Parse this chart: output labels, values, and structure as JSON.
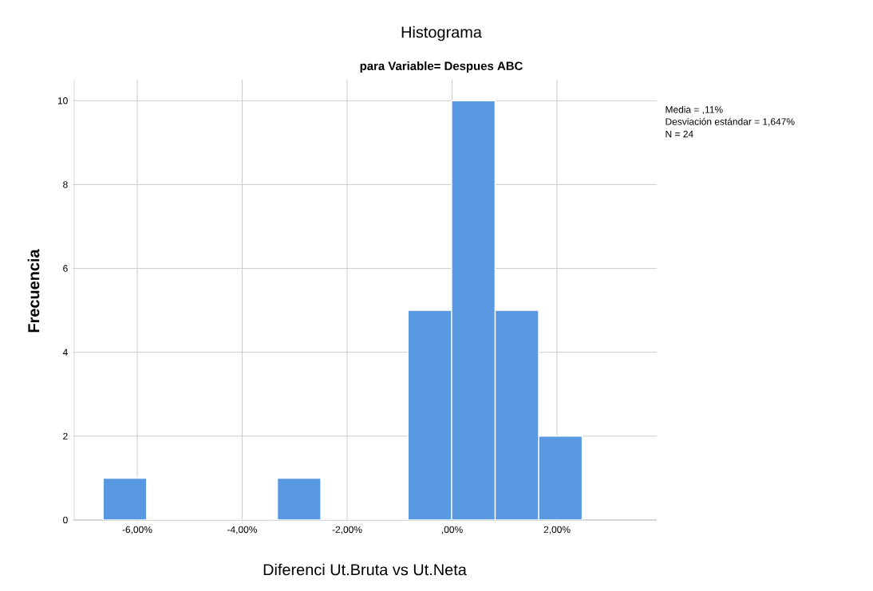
{
  "chart_data": {
    "type": "histogram",
    "title": "Histograma",
    "subtitle": "para Variable= Despues ABC",
    "xlabel": "Diferenci Ut.Bruta vs Ut.Neta",
    "ylabel": "Frecuencia",
    "bins": [
      -6.65,
      -5.82,
      -4.99,
      -4.16,
      -3.33,
      -2.5,
      -1.67,
      -0.84,
      -0.01,
      0.82,
      1.65,
      2.48
    ],
    "values": [
      1,
      0,
      0,
      0,
      1,
      0,
      0,
      5,
      10,
      5,
      2
    ],
    "color": "#5899e2",
    "xlim": [
      -7.2,
      3.9
    ],
    "ylim": [
      0,
      10.5
    ],
    "xticks": [
      {
        "value": -6,
        "label": "-6,00%"
      },
      {
        "value": -4,
        "label": "-4,00%"
      },
      {
        "value": -2,
        "label": "-2,00%"
      },
      {
        "value": 0,
        "label": ",00%"
      },
      {
        "value": 2,
        "label": "2,00%"
      }
    ],
    "yticks": [
      0,
      2,
      4,
      6,
      8,
      10
    ],
    "grid": true,
    "annotations": [
      "Media = ,11%",
      "Desviación estándar = 1,647%",
      "N = 24"
    ]
  }
}
